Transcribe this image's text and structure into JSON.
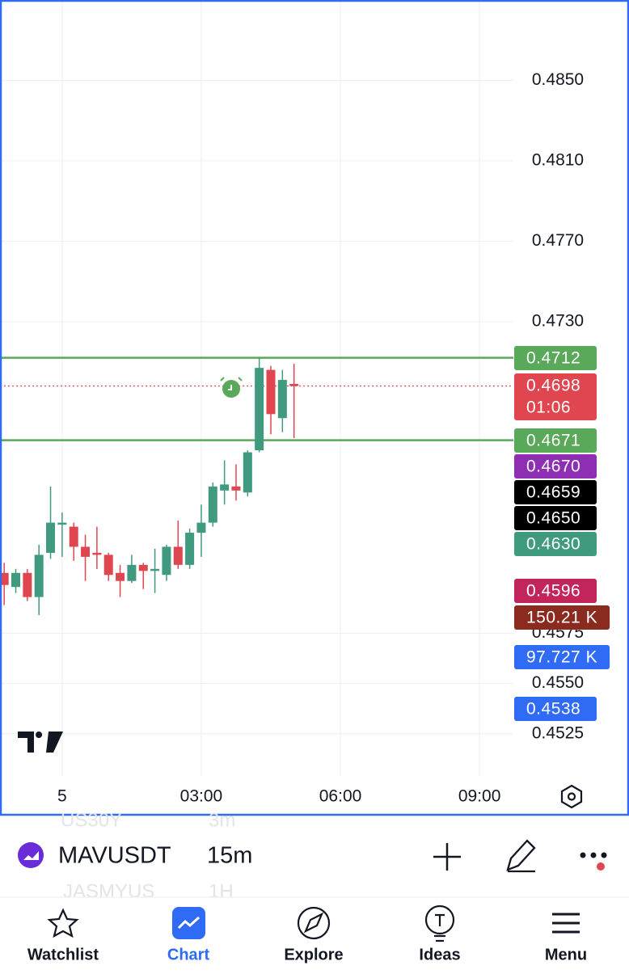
{
  "chart_data": {
    "type": "candlestick",
    "x": [
      -1.25,
      -1,
      -0.75,
      -0.5,
      -0.25,
      0,
      0.25,
      0.5,
      0.75,
      1,
      1.25,
      1.5,
      1.75,
      2,
      2.25,
      2.5,
      2.75,
      3,
      3.25,
      3.5,
      3.75,
      4,
      4.25,
      4.5,
      4.75,
      5
    ],
    "open": [
      0.4605,
      0.4598,
      0.4605,
      0.4593,
      0.4615,
      0.4629,
      0.4628,
      0.4618,
      0.4615,
      0.4614,
      0.4605,
      0.4601,
      0.4609,
      0.4606,
      0.4604,
      0.4618,
      0.4609,
      0.4625,
      0.463,
      0.4646,
      0.4648,
      0.4645,
      0.4666,
      0.4706,
      0.4682,
      0.4699
    ],
    "high": [
      0.461,
      0.4607,
      0.4607,
      0.4619,
      0.4648,
      0.4635,
      0.463,
      0.4624,
      0.4628,
      0.4615,
      0.4609,
      0.4614,
      0.461,
      0.4617,
      0.4619,
      0.4631,
      0.4627,
      0.4639,
      0.465,
      0.4661,
      0.4659,
      0.4666,
      0.4712,
      0.4708,
      0.4706,
      0.4709
    ],
    "low": [
      0.4589,
      0.4595,
      0.4591,
      0.4584,
      0.4612,
      0.4613,
      0.4611,
      0.4601,
      0.4607,
      0.4601,
      0.4593,
      0.46,
      0.4597,
      0.4595,
      0.4601,
      0.4607,
      0.4607,
      0.4613,
      0.4628,
      0.4639,
      0.4641,
      0.4643,
      0.4665,
      0.4674,
      0.4675,
      0.4672
    ],
    "close": [
      0.4599,
      0.4605,
      0.4593,
      0.4614,
      0.463,
      0.463,
      0.4618,
      0.4613,
      0.4614,
      0.4604,
      0.4601,
      0.4609,
      0.4606,
      0.4607,
      0.4618,
      0.4609,
      0.4625,
      0.463,
      0.4648,
      0.4649,
      0.4646,
      0.4665,
      0.4707,
      0.4684,
      0.4701,
      0.4698
    ],
    "up_color": "#3f9a80",
    "down_color": "#e0464f",
    "xlim": [
      -1.34,
      9.73
    ],
    "xticks": [
      {
        "value": 0,
        "label": "5"
      },
      {
        "value": 3,
        "label": "03:00"
      },
      {
        "value": 6,
        "label": "06:00"
      },
      {
        "value": 9,
        "label": "09:00"
      }
    ],
    "ylim": [
      0.489,
      0.4506
    ],
    "yticks": [
      {
        "value": 0.485,
        "label": "0.4850"
      },
      {
        "value": 0.481,
        "label": "0.4810"
      },
      {
        "value": 0.477,
        "label": "0.4770"
      },
      {
        "value": 0.473,
        "label": "0.4730"
      },
      {
        "value": 0.4575,
        "label": "0.4575"
      },
      {
        "value": 0.455,
        "label": "0.4550"
      },
      {
        "value": 0.4525,
        "label": "0.4525"
      }
    ],
    "grid": true,
    "hlines": [
      {
        "value": 0.4712,
        "color": "#5aa85a"
      },
      {
        "value": 0.4671,
        "color": "#5aa85a"
      }
    ],
    "last_price": {
      "value": 0.4698,
      "color": "#e0464f"
    }
  },
  "price_labels": [
    {
      "label": "0.4712",
      "color": "#5aa85a"
    },
    {
      "label": "0.4698",
      "sub": "01:06",
      "color": "#e0464f"
    },
    {
      "label": "0.4671",
      "color": "#5aa85a"
    },
    {
      "label": "0.4670",
      "color": "#8e2fb3"
    },
    {
      "label": "0.4659",
      "color": "#000000"
    },
    {
      "label": "0.4650",
      "color": "#000000"
    },
    {
      "label": "0.4630",
      "color": "#3f9a80"
    },
    {
      "label": "0.4596",
      "color": "#c2255c"
    },
    {
      "label": "150.21 K",
      "color": "#8b2a1f"
    },
    {
      "label": "97.727 K",
      "color": "#2f6bf5"
    },
    {
      "label": "0.4538",
      "color": "#2f6bf5"
    }
  ],
  "toolbar": {
    "symbol": "MAVUSDT",
    "interval": "15m",
    "ghost_above": [
      "US30Y",
      "3m"
    ],
    "ghost_below": [
      "JASMYUS",
      "1H"
    ]
  },
  "nav": [
    "Watchlist",
    "Chart",
    "Explore",
    "Ideas",
    "Menu"
  ]
}
